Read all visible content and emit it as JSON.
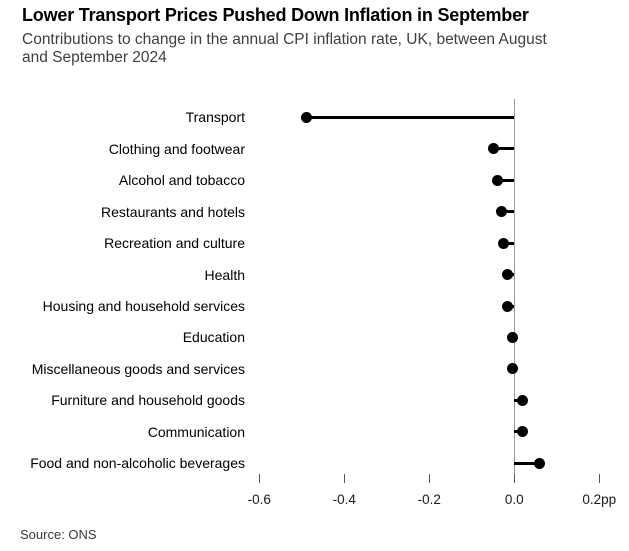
{
  "header": {
    "title": "Lower Transport Prices Pushed Down Inflation in September",
    "subtitle_lines": [
      "Contributions to change in the annual CPI inflation rate, UK, between August",
      "and September 2024"
    ]
  },
  "footer": {
    "source": "Source: ONS"
  },
  "colors": {
    "dot": "#000000",
    "stem": "#000000",
    "zero_baseline": "#9a9a9a",
    "tick": "#555555",
    "title_text": "#000000",
    "subtitle_text": "#3e3e3e",
    "source_text": "#3a3a3a"
  },
  "chart_data": {
    "type": "bar",
    "variant": "horizontal-lollipop",
    "title": "Lower Transport Prices Pushed Down Inflation in September",
    "subtitle": "Contributions to change in the annual CPI inflation rate, UK, between August and September 2024",
    "unit": "pp",
    "categories": [
      "Transport",
      "Clothing and footwear",
      "Alcohol and tobacco",
      "Restaurants and hotels",
      "Recreation and culture",
      "Health",
      "Housing and household services",
      "Education",
      "Miscellaneous goods and services",
      "Furniture and household goods",
      "Communication",
      "Food and non-alcoholic beverages"
    ],
    "values": [
      -0.49,
      -0.05,
      -0.04,
      -0.03,
      -0.025,
      -0.015,
      -0.015,
      -0.005,
      -0.005,
      0.02,
      0.02,
      0.06
    ],
    "axis": {
      "orientation": "x",
      "range": [
        -0.66,
        0.27
      ],
      "zero_baseline": true,
      "grid": false,
      "ticks": [
        {
          "value": -0.6,
          "label": "-0.6"
        },
        {
          "value": -0.4,
          "label": "-0.4"
        },
        {
          "value": -0.2,
          "label": "-0.2"
        },
        {
          "value": 0.0,
          "label": "0.0"
        },
        {
          "value": 0.2,
          "label": "0.2pp"
        }
      ]
    },
    "legend": null
  }
}
